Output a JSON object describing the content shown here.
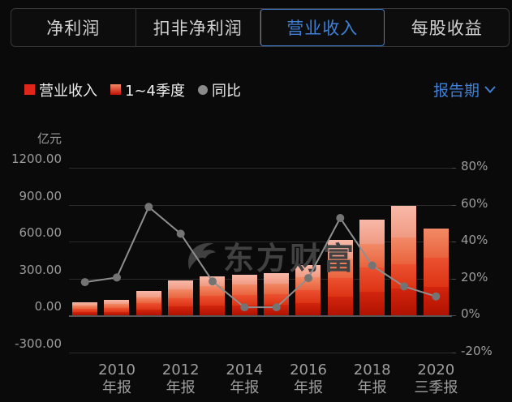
{
  "tabs": {
    "items": [
      {
        "label": "净利润",
        "selected": false
      },
      {
        "label": "扣非净利润",
        "selected": false
      },
      {
        "label": "营业收入",
        "selected": true
      },
      {
        "label": "每股收益",
        "selected": false
      }
    ]
  },
  "legend": {
    "revenue_label": "营业收入",
    "quarters_label": "1~4季度",
    "yoy_label": "同比",
    "report_period_label": "报告期"
  },
  "chart_data": {
    "type": "bar+line",
    "unit": "亿元",
    "watermark": "东方财富",
    "grid": true,
    "left_axis": {
      "title": "亿元",
      "min": -300,
      "max": 1200,
      "ticks": [
        {
          "value": 1200,
          "label": "1200.00"
        },
        {
          "value": 900,
          "label": "900.00"
        },
        {
          "value": 600,
          "label": "600.00"
        },
        {
          "value": 300,
          "label": "300.00"
        },
        {
          "value": 0,
          "label": "0.00"
        },
        {
          "value": -300,
          "label": "-300.00"
        }
      ]
    },
    "right_axis": {
      "min": -20,
      "max": 80,
      "ticks": [
        {
          "value": 80,
          "label": "80%"
        },
        {
          "value": 60,
          "label": "60%"
        },
        {
          "value": 40,
          "label": "40%"
        },
        {
          "value": 20,
          "label": "20%"
        },
        {
          "value": 0,
          "label": "0%"
        },
        {
          "value": -20,
          "label": "-20%"
        }
      ]
    },
    "x_labels": [
      {
        "slot": 1,
        "line1": "2010",
        "line2": "年报"
      },
      {
        "slot": 3,
        "line1": "2012",
        "line2": "年报"
      },
      {
        "slot": 5,
        "line1": "2014",
        "line2": "年报"
      },
      {
        "slot": 7,
        "line1": "2016",
        "line2": "年报"
      },
      {
        "slot": 9,
        "line1": "2018",
        "line2": "年报"
      },
      {
        "slot": 11,
        "line1": "2020",
        "line2": "三季报"
      }
    ],
    "bars": [
      {
        "period": "2009年报",
        "total": 111,
        "segments": [
          28,
          28,
          28,
          27
        ]
      },
      {
        "period": "2010年报",
        "total": 127,
        "segments": [
          32,
          32,
          32,
          31
        ]
      },
      {
        "period": "2011年报",
        "total": 199,
        "segments": [
          50,
          50,
          50,
          49
        ]
      },
      {
        "period": "2012年报",
        "total": 287,
        "segments": [
          72,
          72,
          72,
          71
        ]
      },
      {
        "period": "2013年报",
        "total": 316,
        "segments": [
          79,
          79,
          79,
          79
        ]
      },
      {
        "period": "2014年报",
        "total": 335,
        "segments": [
          84,
          84,
          84,
          83
        ]
      },
      {
        "period": "2015年报",
        "total": 342,
        "segments": [
          86,
          86,
          85,
          85
        ]
      },
      {
        "period": "2016年报",
        "total": 414,
        "segments": [
          104,
          104,
          103,
          103
        ]
      },
      {
        "period": "2017年报",
        "total": 615,
        "segments": [
          154,
          154,
          154,
          153
        ]
      },
      {
        "period": "2018年报",
        "total": 778,
        "segments": [
          195,
          195,
          194,
          194
        ]
      },
      {
        "period": "2019年报",
        "total": 893,
        "segments": [
          223,
          196,
          218,
          256
        ]
      },
      {
        "period": "2020三季报",
        "total": 705,
        "segments": [
          235,
          235,
          235
        ]
      }
    ],
    "line": {
      "name": "同比",
      "unit": "%",
      "values": [
        18.1,
        20.6,
        58.8,
        44.3,
        18.5,
        4.5,
        4.5,
        20.3,
        52.8,
        27.1,
        15.8,
        10.4
      ]
    },
    "colors": {
      "quarter_top": [
        "#d2250e",
        "#ec5130",
        "#f28a67",
        "#f8b9a8"
      ],
      "quarter_base": [
        "#b11201",
        "#dc3415",
        "#e9633d",
        "#f09a83"
      ],
      "line": "#8f8f8f",
      "dot": "#747474",
      "grid": "#2b2b2b",
      "zero_axis": "#565656",
      "accent_blue": "#3f80d6",
      "legend_red": "#e0251a"
    }
  }
}
